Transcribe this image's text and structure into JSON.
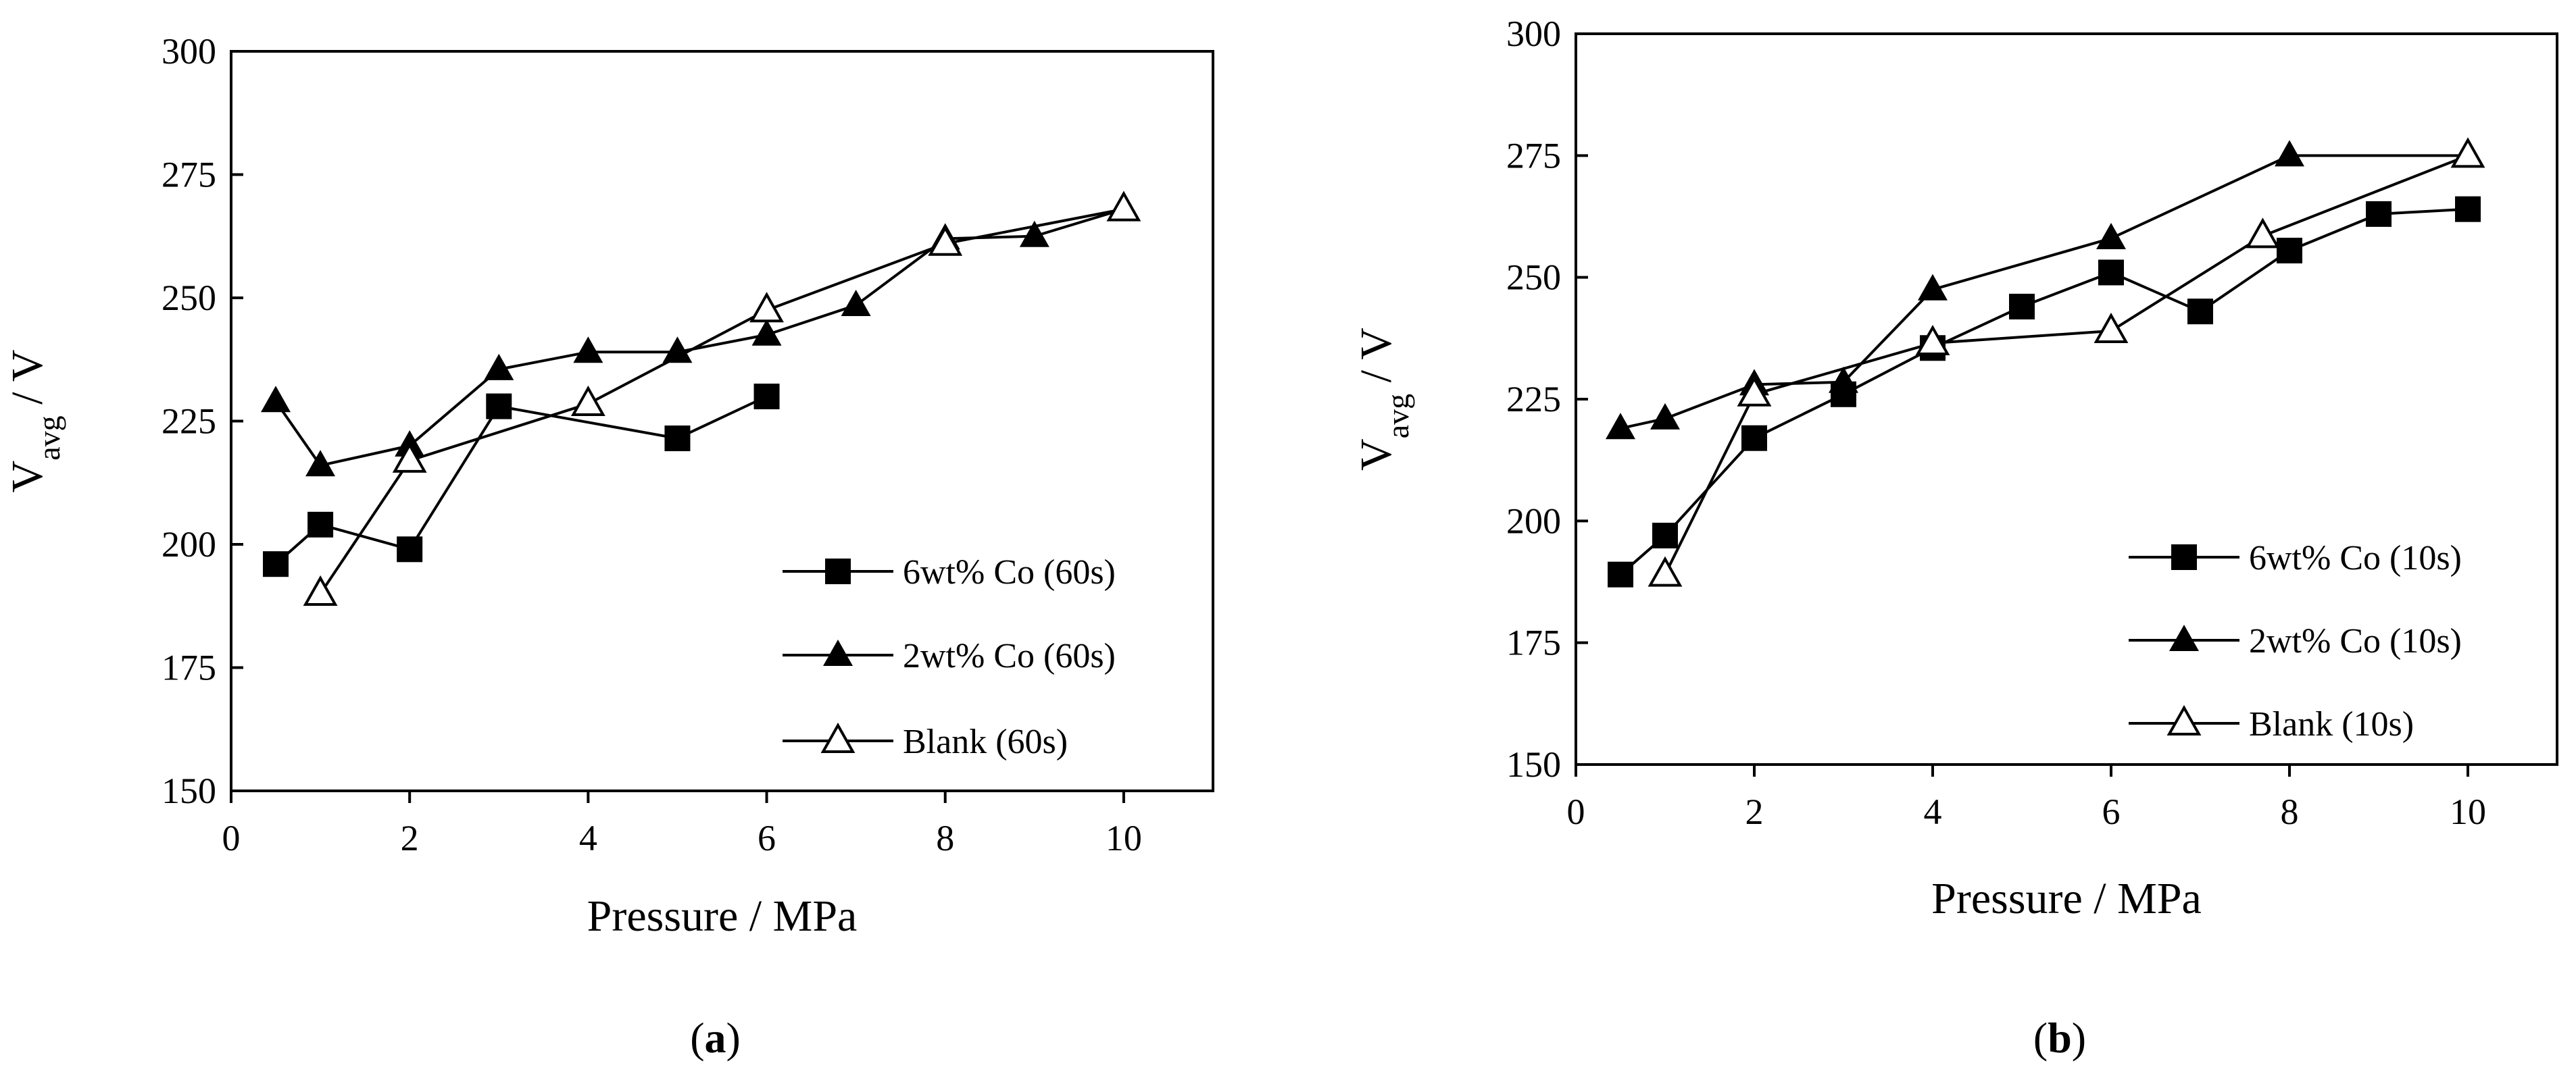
{
  "chart_data": [
    {
      "type": "line",
      "panel_label": "a",
      "xlabel": "Pressure / MPa",
      "ylabel": {
        "main": "V",
        "sub": "avg",
        "suffix": " / V"
      },
      "xlim": [
        0,
        11
      ],
      "ylim": [
        150,
        300
      ],
      "xticks": [
        0,
        2,
        4,
        6,
        8,
        10
      ],
      "yticks": [
        150,
        175,
        200,
        225,
        250,
        275,
        300
      ],
      "grid": false,
      "legend": "bottom-right",
      "series": [
        {
          "name": "6wt% Co (60s)",
          "marker": "square-filled",
          "x": [
            0.5,
            1,
            2,
            3,
            5,
            6
          ],
          "y": [
            196,
            204,
            199,
            228,
            221.5,
            230
          ]
        },
        {
          "name": "2wt% Co (60s)",
          "marker": "triangle-filled",
          "x": [
            0.5,
            1,
            2,
            3,
            4,
            5,
            6,
            7,
            8,
            9,
            10
          ],
          "y": [
            229,
            216,
            220,
            235.5,
            239,
            239,
            242.5,
            248.5,
            262,
            262.5,
            268
          ]
        },
        {
          "name": "Blank (60s)",
          "marker": "triangle-open",
          "x": [
            1,
            2,
            4,
            6,
            8,
            10
          ],
          "y": [
            190,
            217,
            228.5,
            247.5,
            261,
            268
          ]
        }
      ]
    },
    {
      "type": "line",
      "panel_label": "b",
      "xlabel": "Pressure / MPa",
      "ylabel": {
        "main": "V",
        "sub": "avg",
        "suffix": " / V"
      },
      "xlim": [
        0,
        11
      ],
      "ylim": [
        150,
        300
      ],
      "xticks": [
        0,
        2,
        4,
        6,
        8,
        10
      ],
      "yticks": [
        150,
        175,
        200,
        225,
        250,
        275,
        300
      ],
      "grid": false,
      "legend": "bottom-right",
      "series": [
        {
          "name": "6wt% Co (10s)",
          "marker": "square-filled",
          "x": [
            0.5,
            1,
            2,
            3,
            4,
            5,
            6,
            7,
            8,
            9,
            10
          ],
          "y": [
            189,
            197,
            217,
            226,
            235.5,
            244,
            251,
            243,
            255.5,
            263,
            264
          ]
        },
        {
          "name": "2wt% Co (10s)",
          "marker": "triangle-filled",
          "x": [
            0.5,
            1,
            2,
            3,
            4,
            6,
            8,
            10
          ],
          "y": [
            219,
            221,
            228,
            228.5,
            247.5,
            258,
            275,
            275
          ]
        },
        {
          "name": "Blank (10s)",
          "marker": "triangle-open",
          "x": [
            1,
            2,
            4,
            6,
            7.7,
            10
          ],
          "y": [
            189,
            226,
            236.5,
            239,
            258.5,
            275
          ]
        }
      ]
    }
  ]
}
